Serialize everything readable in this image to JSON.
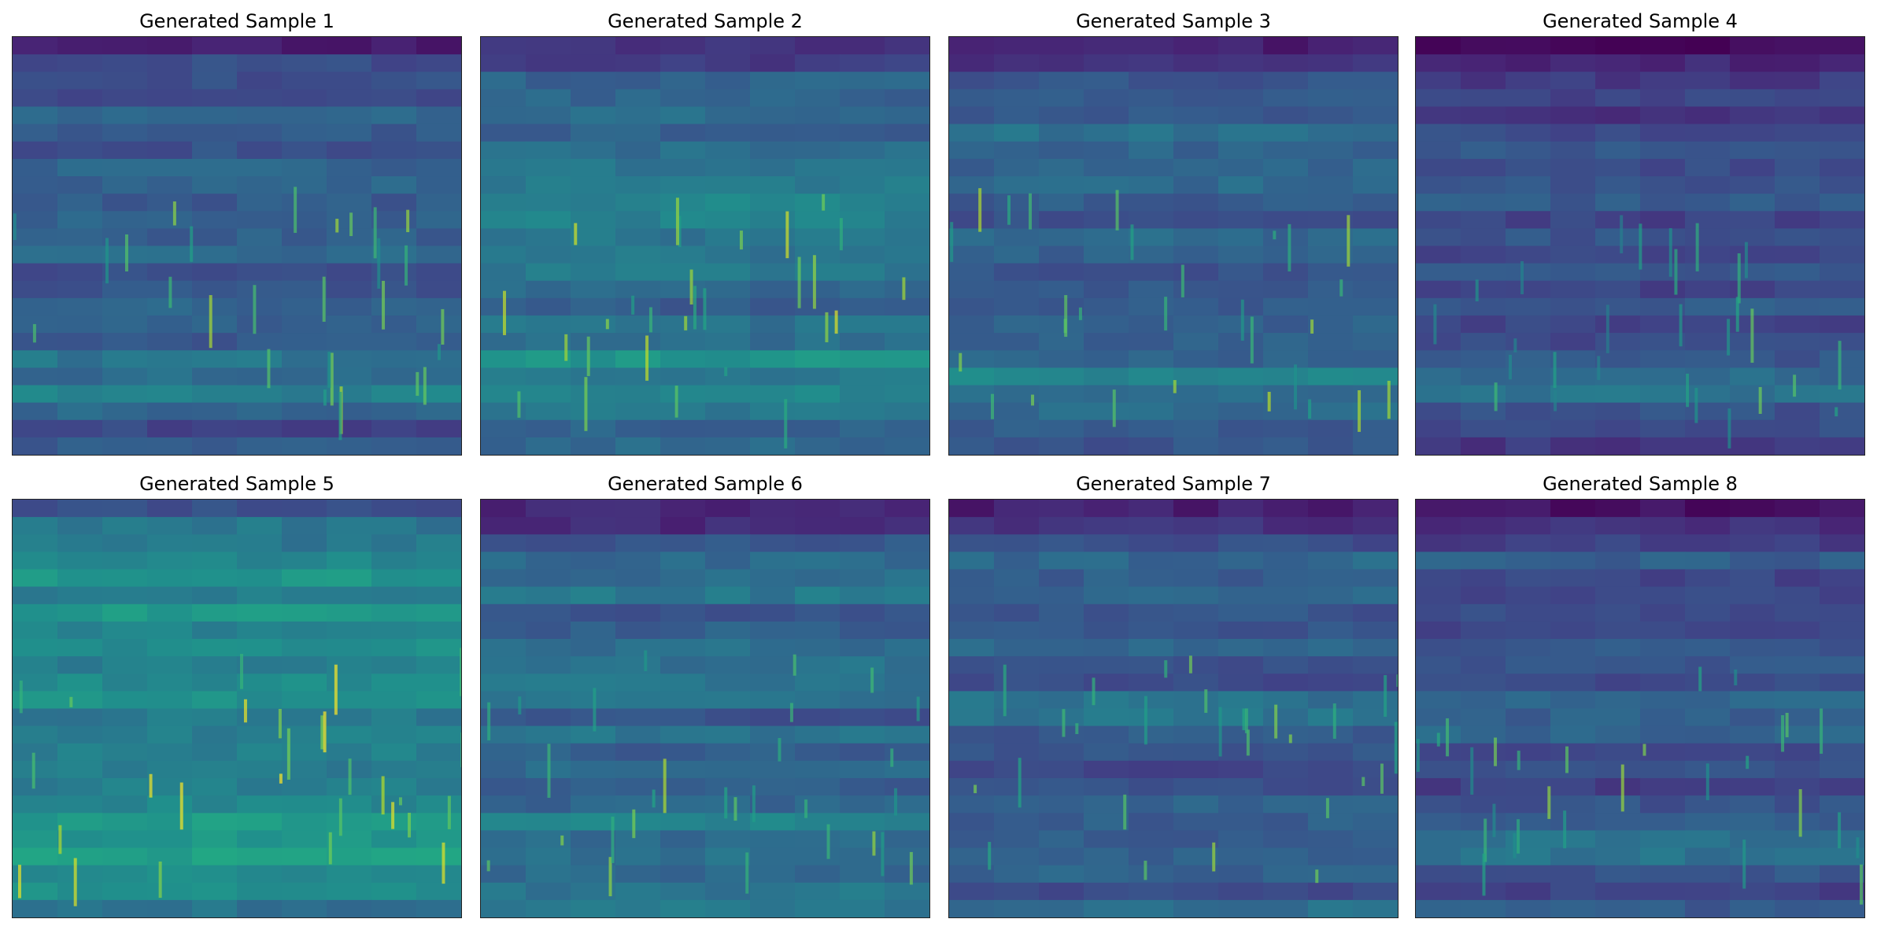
{
  "panels": [
    {
      "title": "Generated Sample 1"
    },
    {
      "title": "Generated Sample 2"
    },
    {
      "title": "Generated Sample 3"
    },
    {
      "title": "Generated Sample 4"
    },
    {
      "title": "Generated Sample 5"
    },
    {
      "title": "Generated Sample 6"
    },
    {
      "title": "Generated Sample 7"
    },
    {
      "title": "Generated Sample 8"
    }
  ]
}
